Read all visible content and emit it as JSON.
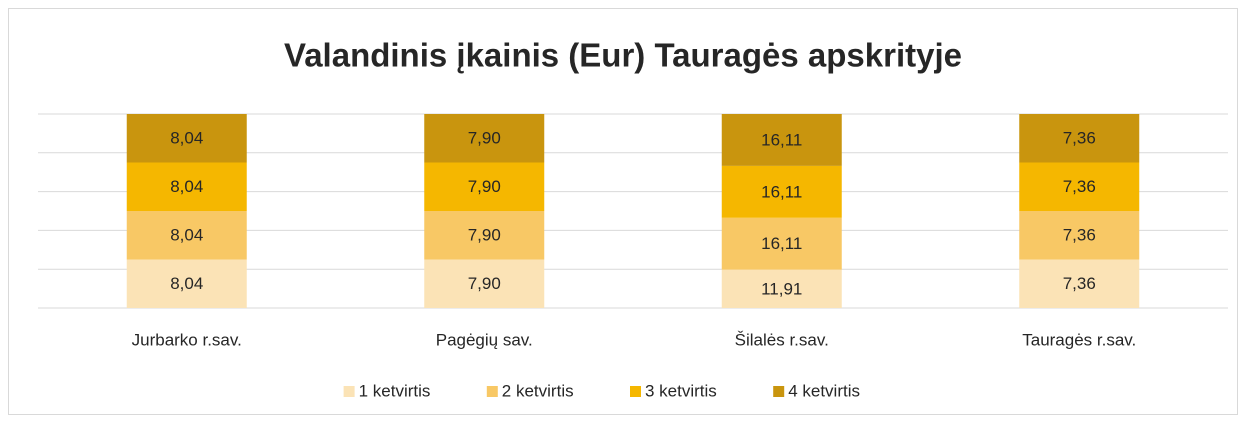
{
  "chart_data": {
    "type": "bar",
    "stacked": "percent",
    "title": "Valandinis įkainis (Eur) Tauragės apskrityje",
    "categories": [
      "Jurbarko r.sav.",
      "Pagėgių sav.",
      "Šilalės r.sav.",
      "Tauragės r.sav."
    ],
    "series": [
      {
        "name": "1 ketvirtis",
        "color": "#fbe3b6",
        "values": [
          8.04,
          7.9,
          11.91,
          7.36
        ],
        "value_labels": [
          "8,04",
          "7,90",
          "11,91",
          "7,36"
        ]
      },
      {
        "name": "2 ketvirtis",
        "color": "#f8c865",
        "values": [
          8.04,
          7.9,
          16.11,
          7.36
        ],
        "value_labels": [
          "8,04",
          "7,90",
          "16,11",
          "7,36"
        ]
      },
      {
        "name": "3 ketvirtis",
        "color": "#f5b700",
        "values": [
          8.04,
          7.9,
          16.11,
          7.36
        ],
        "value_labels": [
          "8,04",
          "7,90",
          "16,11",
          "7,36"
        ]
      },
      {
        "name": "4 ketvirtis",
        "color": "#c9950e",
        "values": [
          8.04,
          7.9,
          16.11,
          7.36
        ],
        "value_labels": [
          "8,04",
          "7,90",
          "16,11",
          "7,36"
        ]
      }
    ],
    "ylim": [
      0,
      100
    ],
    "yticks": [
      0,
      20,
      40,
      60,
      80,
      100
    ],
    "grid": true,
    "legend": "bottom"
  }
}
